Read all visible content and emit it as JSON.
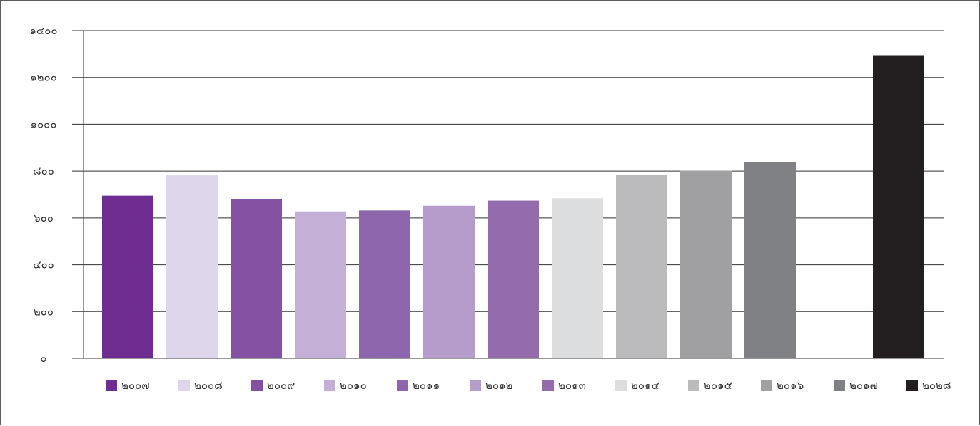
{
  "chart_data": {
    "type": "bar",
    "title": "",
    "xlabel": "",
    "ylabel": "",
    "ylim": [
      0,
      1400
    ],
    "yticks": [
      0,
      200,
      400,
      600,
      800,
      1000,
      1200,
      1400
    ],
    "ytick_labels": [
      "๐",
      "๒๐๐",
      "๔๐๐",
      "๖๐๐",
      "๘๐๐",
      "๑๐๐๐",
      "๑๒๐๐",
      "๑๔๐๐"
    ],
    "grid": true,
    "legend_position": "bottom",
    "categories": [
      "๒๐๐๗",
      "๒๐๐๘",
      "๒๐๐๙",
      "๒๐๑๐",
      "๒๐๑๑",
      "๒๐๑๒",
      "๒๐๑๓",
      "๒๐๑๔",
      "๒๐๑๕",
      "๒๐๑๖",
      "๒๐๑๗",
      "๒๐๒๘"
    ],
    "values": [
      695,
      782,
      680,
      628,
      632,
      652,
      674,
      684,
      785,
      802,
      837,
      1295
    ],
    "colors": [
      "#6f2c91",
      "#ded6ea",
      "#8552a1",
      "#c4b0d6",
      "#8e66ad",
      "#b69ccb",
      "#946cae",
      "#dcdddf",
      "#bbbbbe",
      "#a0a0a3",
      "#808184",
      "#231f20"
    ],
    "slot_shift": [
      0,
      0,
      0,
      0,
      0,
      0,
      0,
      0,
      0,
      0,
      0,
      1
    ]
  }
}
